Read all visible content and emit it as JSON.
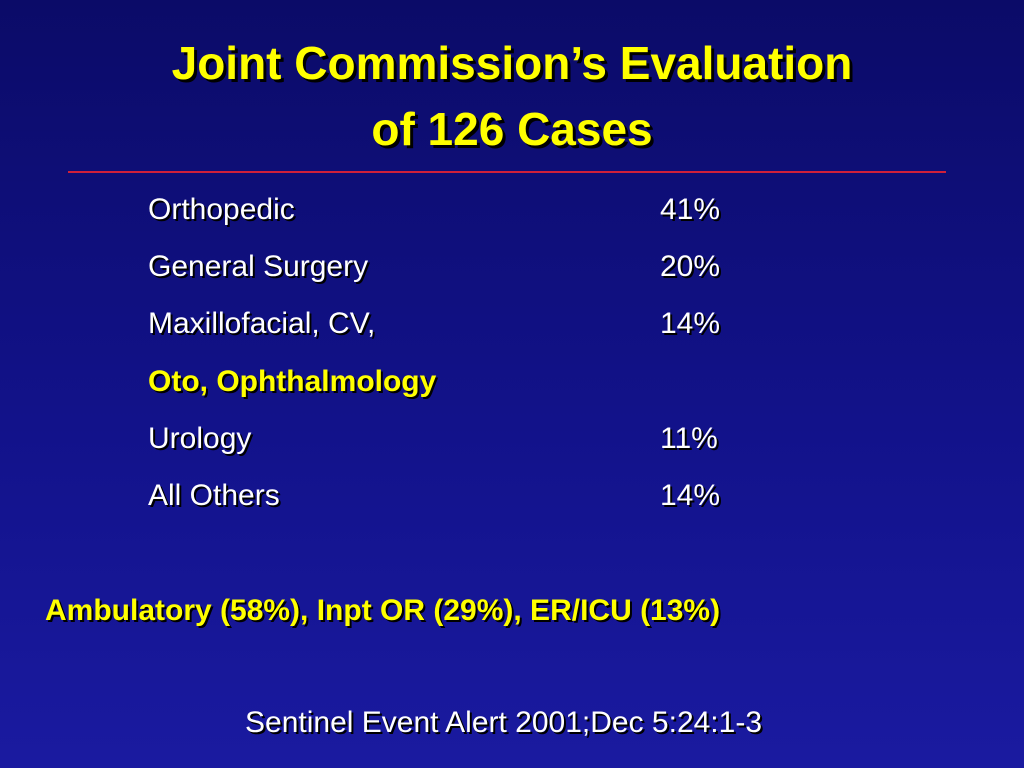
{
  "header": {
    "title": [
      "Joint Commission’s Evaluation",
      "of 126 Cases"
    ]
  },
  "table": {
    "rows": [
      {
        "label": "Orthopedic",
        "value": "41%"
      },
      {
        "label": "General Surgery",
        "value": "20%"
      },
      {
        "label": "Maxillofacial, CV,",
        "value": "14%"
      },
      {
        "label": "Oto, Ophthalmology",
        "color": "#ffff00"
      },
      {
        "label": "Urology",
        "value": "11%"
      },
      {
        "label": "All Others",
        "value": "14%"
      }
    ]
  },
  "summary": "Ambulatory (58%), Inpt OR (29%), ER/ICU (13%)",
  "source": "Sentinel Event Alert 2001;Dec 5:24:1-3"
}
